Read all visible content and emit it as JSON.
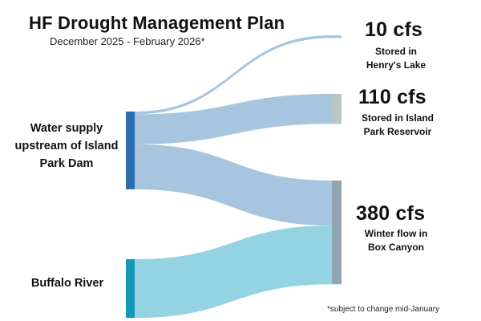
{
  "header": {
    "title": "HF Drought Management Plan",
    "subtitle": "December 2025 - February 2026*"
  },
  "footnote": "*subject to change mid-January",
  "colors": {
    "source_upstream": "#2a6ead",
    "source_buffalo": "#1597b8",
    "flow_upstream": "#a7c5de",
    "flow_buffalo": "#94d3e2",
    "target_henrys": "#a7c5de",
    "target_island_park": "#b9c7c2",
    "target_box_canyon": "#8fa3b1"
  },
  "chart_data": {
    "type": "sankey",
    "units": "cfs",
    "sources": [
      {
        "id": "upstream",
        "label_lines": [
          "Water supply",
          "upstream of Island",
          "Park Dam"
        ]
      },
      {
        "id": "buffalo",
        "label_lines": [
          "Buffalo River"
        ]
      }
    ],
    "targets": [
      {
        "id": "henrys",
        "value_label": "10 cfs",
        "value": 10,
        "desc_lines": [
          "Stored in",
          "Henry's Lake"
        ]
      },
      {
        "id": "island_park",
        "value_label": "110 cfs",
        "value": 110,
        "desc_lines": [
          "Stored in Island",
          "Park Reservoir"
        ]
      },
      {
        "id": "box_canyon",
        "value_label": "380 cfs",
        "value": 380,
        "desc_lines": [
          "Winter flow in",
          "Box Canyon"
        ]
      }
    ],
    "flows": [
      {
        "from": "upstream",
        "to": "henrys",
        "value": 10
      },
      {
        "from": "upstream",
        "to": "island_park",
        "value": 110
      },
      {
        "from": "upstream",
        "to": "box_canyon",
        "value": 165
      },
      {
        "from": "buffalo",
        "to": "box_canyon",
        "value": 215
      }
    ]
  }
}
